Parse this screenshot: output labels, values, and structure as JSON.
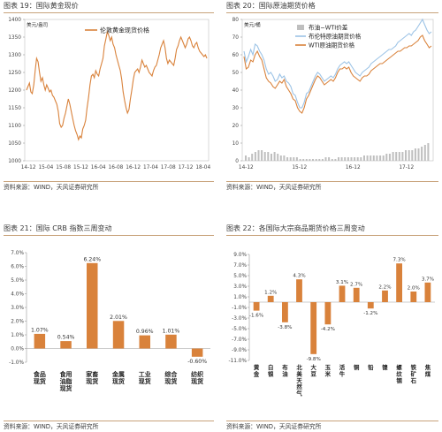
{
  "figures": {
    "fig19": {
      "title": "图表 19：国际黄金现价",
      "source": "资料来源：WIND，天风证券研究所"
    },
    "fig20": {
      "title": "图表 20：国际原油期货价格",
      "source": "资料来源：WIND，天风证券研究所"
    },
    "fig21": {
      "title": "图表 21：国际 CRB 指数三周变动",
      "source": "资料来源：WIND，天风证券研究所"
    },
    "fig22": {
      "title": "图表 22：各国际大宗商品期货价格三周变动",
      "source": "资料来源：WIND，天风证券研究所"
    }
  },
  "chart_data": [
    {
      "type": "line",
      "unit": "美元/盎司",
      "ylim": [
        1000,
        1400
      ],
      "yticks": [
        1000,
        1050,
        1100,
        1150,
        1200,
        1250,
        1300,
        1350,
        1400
      ],
      "xticks": [
        "14-12",
        "15-04",
        "15-08",
        "15-12",
        "16-04",
        "16-08",
        "16-12",
        "17-04",
        "17-08",
        "17-12",
        "18-04"
      ],
      "legend_position": "top-center",
      "colors": {
        "line": "#d9823b"
      },
      "series": [
        {
          "name": "伦敦黄金现货价格",
          "values": [
            1200,
            1210,
            1220,
            1195,
            1190,
            1215,
            1255,
            1290,
            1280,
            1250,
            1225,
            1235,
            1215,
            1200,
            1215,
            1205,
            1195,
            1200,
            1185,
            1180,
            1170,
            1160,
            1140,
            1105,
            1095,
            1100,
            1120,
            1135,
            1155,
            1175,
            1160,
            1140,
            1120,
            1100,
            1085,
            1075,
            1060,
            1070,
            1065,
            1090,
            1100,
            1115,
            1150,
            1180,
            1215,
            1240,
            1245,
            1235,
            1255,
            1245,
            1240,
            1260,
            1275,
            1290,
            1325,
            1345,
            1365,
            1355,
            1340,
            1350,
            1330,
            1320,
            1300,
            1285,
            1270,
            1255,
            1230,
            1195,
            1170,
            1150,
            1135,
            1145,
            1175,
            1200,
            1230,
            1250,
            1255,
            1260,
            1250,
            1265,
            1285,
            1275,
            1265,
            1270,
            1260,
            1250,
            1245,
            1240,
            1255,
            1265,
            1270,
            1285,
            1300,
            1320,
            1330,
            1340,
            1320,
            1290,
            1275,
            1285,
            1280,
            1275,
            1270,
            1290,
            1315,
            1325,
            1340,
            1350,
            1340,
            1330,
            1320,
            1330,
            1345,
            1350,
            1340,
            1325,
            1320,
            1330,
            1335,
            1320,
            1310,
            1305,
            1300,
            1295,
            1300,
            1290
          ]
        }
      ]
    },
    {
      "type": "line",
      "unit": "美元/桶",
      "ylim": [
        0,
        80
      ],
      "yticks": [
        0,
        10,
        20,
        30,
        40,
        50,
        60,
        70,
        80
      ],
      "xticks": [
        "14-12",
        "15-12",
        "16-12",
        "17-12"
      ],
      "legend_position": "top-right",
      "colors": {
        "brent": "#9cc3e6",
        "wti": "#d9823b",
        "spread": "#bfbfbf"
      },
      "series": [
        {
          "name": "布油−WTI价差",
          "kind": "bar",
          "values": [
            3,
            2,
            4,
            5,
            6,
            6,
            5,
            5,
            4,
            5,
            4,
            3,
            3,
            2,
            2,
            2,
            2,
            1,
            1,
            1,
            1,
            1,
            1,
            1,
            1,
            2,
            2,
            1,
            1,
            2,
            2,
            2,
            2,
            2,
            2,
            2,
            2,
            3,
            3,
            3,
            3,
            3,
            3,
            3,
            4,
            4,
            5,
            5,
            5,
            5,
            6,
            6,
            6,
            7,
            7,
            8,
            9,
            10
          ]
        },
        {
          "name": "布伦特原油期货价格",
          "values": [
            62,
            56,
            59,
            63,
            60,
            66,
            65,
            62,
            60,
            57,
            52,
            49,
            50,
            48,
            45,
            46,
            49,
            47,
            48,
            45,
            44,
            42,
            38,
            37,
            33,
            30,
            30,
            33,
            38,
            39,
            42,
            45,
            48,
            50,
            49,
            47,
            45,
            46,
            47,
            48,
            47,
            49,
            52,
            54,
            55,
            56,
            55,
            56,
            54,
            52,
            50,
            49,
            48,
            50,
            51,
            52,
            53,
            55,
            56,
            57,
            58,
            59,
            60,
            61,
            62,
            63,
            63,
            64,
            65,
            67,
            68,
            69,
            70,
            71,
            72,
            71,
            73,
            74,
            76,
            78,
            80,
            77,
            74,
            72,
            73
          ]
        },
        {
          "name": "WTI原油期货价格",
          "values": [
            59,
            52,
            53,
            57,
            56,
            60,
            62,
            59,
            57,
            52,
            47,
            45,
            44,
            42,
            41,
            43,
            45,
            44,
            46,
            42,
            40,
            38,
            35,
            34,
            30,
            28,
            27,
            30,
            35,
            37,
            40,
            43,
            46,
            48,
            47,
            45,
            43,
            44,
            45,
            46,
            45,
            47,
            50,
            52,
            52,
            53,
            52,
            53,
            50,
            48,
            47,
            46,
            45,
            47,
            48,
            48,
            49,
            51,
            52,
            53,
            54,
            55,
            55,
            56,
            57,
            58,
            59,
            60,
            61,
            62,
            62,
            63,
            64,
            64,
            65,
            65,
            66,
            67,
            68,
            70,
            71,
            68,
            66,
            64,
            65
          ]
        }
      ]
    },
    {
      "type": "bar",
      "ylim": [
        -1.0,
        7.0
      ],
      "yticks": [
        "-1.0%",
        "0.0%",
        "1.0%",
        "2.0%",
        "3.0%",
        "4.0%",
        "5.0%",
        "6.0%",
        "7.0%"
      ],
      "categories": [
        "食品\n现货",
        "食用\n油脂\n现货",
        "家畜\n现货",
        "金属\n现货",
        "工业\n现货",
        "综合\n现货",
        "纺织\n现货"
      ],
      "values": [
        1.07,
        0.54,
        6.24,
        2.01,
        0.96,
        1.01,
        -0.6
      ],
      "data_labels": [
        "1.07%",
        "0.54%",
        "6.24%",
        "2.01%",
        "0.96%",
        "1.01%",
        "-0.60%"
      ],
      "colors": {
        "bar": "#d9823b"
      }
    },
    {
      "type": "bar",
      "ylim": [
        -11.0,
        9.0
      ],
      "yticks": [
        "-11.0%",
        "-9.0%",
        "-7.0%",
        "-5.0%",
        "-3.0%",
        "-1.0%",
        "1.0%",
        "3.0%",
        "5.0%",
        "7.0%",
        "9.0%"
      ],
      "categories": [
        "黄\n金",
        "白\n银",
        "布\n油",
        "北\n美\n天\n然\n气",
        "大\n豆",
        "玉\n米",
        "活\n牛",
        "铜",
        "铅",
        "镍",
        "螺\n纹\n钢",
        "铁\n矿\n石",
        "焦\n煤"
      ],
      "values": [
        -1.6,
        1.2,
        -3.8,
        4.3,
        -9.8,
        -4.2,
        3.1,
        2.7,
        -1.2,
        2.2,
        7.3,
        2.0,
        3.7
      ],
      "data_labels": [
        "-1.6%",
        "1.2%",
        "-3.8%",
        "4.3%",
        "-9.8%",
        "-4.2%",
        "3.1%",
        "2.7%",
        "-1.2%",
        "2.2%",
        "7.3%",
        "2.0%",
        "3.7%"
      ],
      "colors": {
        "bar": "#d9823b"
      }
    }
  ]
}
